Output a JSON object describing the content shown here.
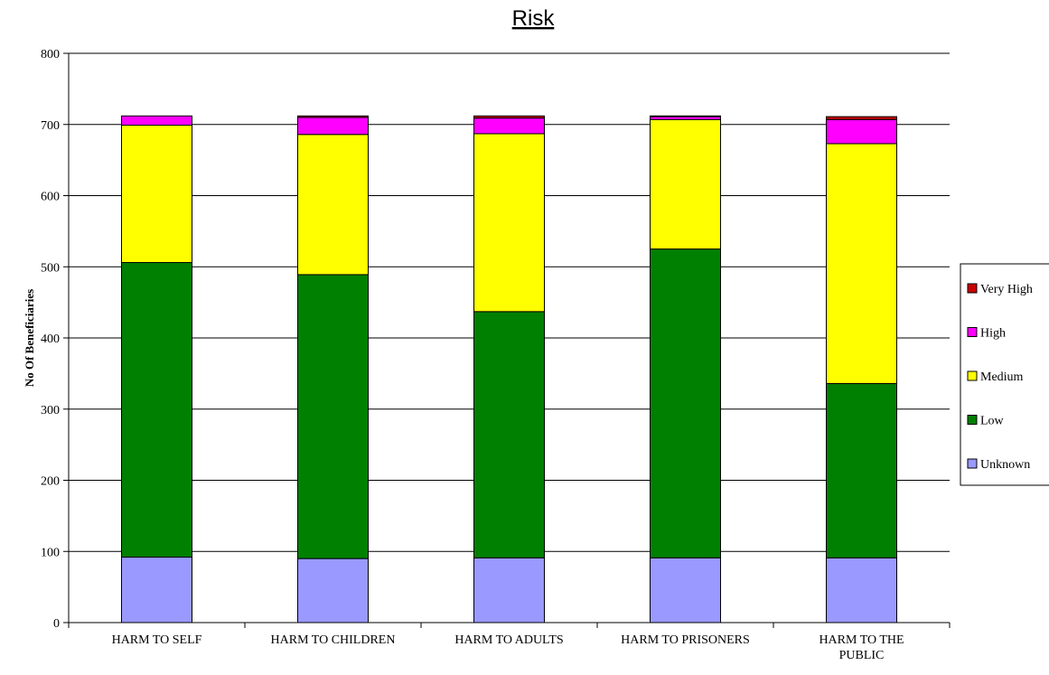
{
  "chart_data": {
    "type": "bar",
    "stacked": true,
    "title": "Risk",
    "xlabel": "",
    "ylabel": "No Of Beneficiaries",
    "ylim": [
      0,
      800
    ],
    "yticks": [
      0,
      100,
      200,
      300,
      400,
      500,
      600,
      700,
      800
    ],
    "grid": true,
    "legend_position": "right",
    "categories": [
      [
        "HARM TO SELF"
      ],
      [
        "HARM TO CHILDREN"
      ],
      [
        "HARM TO ADULTS"
      ],
      [
        "HARM TO PRISONERS"
      ],
      [
        "HARM TO THE",
        "PUBLIC"
      ]
    ],
    "series": [
      {
        "name": "Unknown",
        "color": "#9999ff",
        "values": [
          92,
          90,
          91,
          91,
          91
        ]
      },
      {
        "name": "Low",
        "color": "#008000",
        "values": [
          414,
          399,
          346,
          434,
          245
        ]
      },
      {
        "name": "Medium",
        "color": "#ffff00",
        "values": [
          193,
          197,
          250,
          182,
          337
        ]
      },
      {
        "name": "High",
        "color": "#ff00ff",
        "values": [
          13,
          24,
          22,
          4,
          34
        ]
      },
      {
        "name": "Very High",
        "color": "#cc0000",
        "values": [
          0,
          2,
          3,
          1,
          4
        ]
      }
    ]
  }
}
